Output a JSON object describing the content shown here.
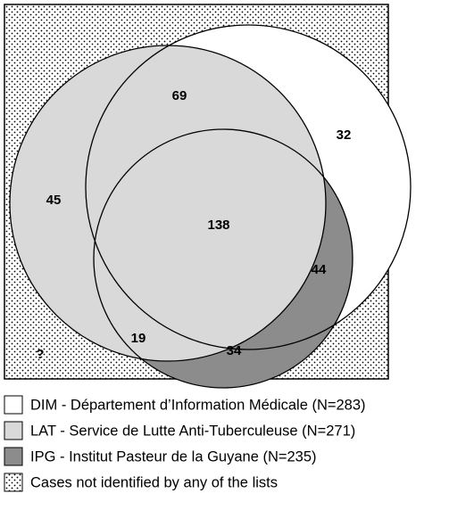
{
  "regions": [
    {
      "name": "LAT and DIM only",
      "value": 69
    },
    {
      "name": "DIM only",
      "value": 32
    },
    {
      "name": "LAT only",
      "value": 45
    },
    {
      "name": "All three",
      "value": 138
    },
    {
      "name": "DIM and IPG only",
      "value": 44
    },
    {
      "name": "LAT and IPG only",
      "value": 19
    },
    {
      "name": "IPG only",
      "value": 34
    },
    {
      "name": "Unidentified",
      "value": "?"
    }
  ],
  "legend": [
    "DIM - Département d’Information Médicale (N=283)",
    "LAT - Service de Lutte Anti-Tuberculeuse (N=271)",
    "IPG - Institut Pasteur de la Guyane (N=235)",
    "Cases not identified by any of the lists"
  ]
}
